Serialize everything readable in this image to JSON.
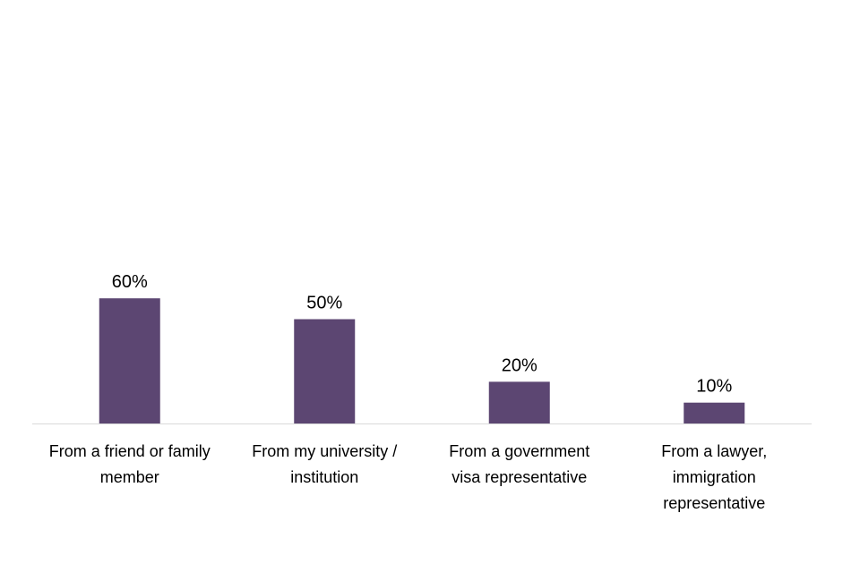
{
  "chart_data": {
    "type": "bar",
    "title": "",
    "xlabel": "",
    "ylabel": "",
    "ylim": [
      0,
      100
    ],
    "grid": false,
    "legend": "none",
    "categories": [
      [
        "From a friend or family",
        "member"
      ],
      [
        "From my university /",
        "institution"
      ],
      [
        "From a government",
        "visa representative"
      ],
      [
        "From a lawyer,",
        "immigration",
        "representative"
      ]
    ],
    "values": [
      60,
      50,
      20,
      10
    ],
    "data_labels": [
      "60%",
      "50%",
      "20%",
      "10%"
    ],
    "bar_color": "#5c4672",
    "axis_color": "#d9d9d9"
  }
}
